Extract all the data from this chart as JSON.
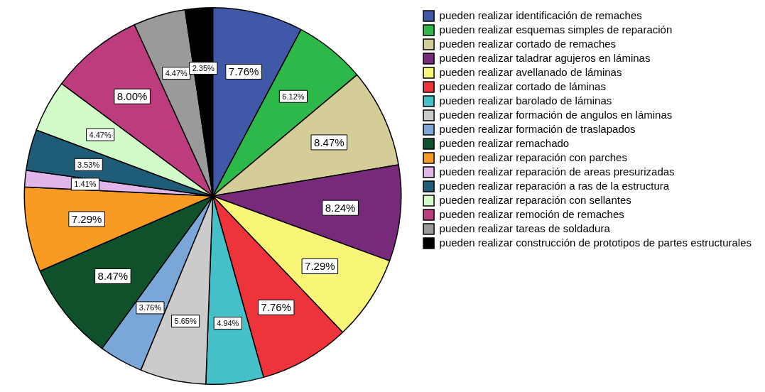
{
  "chart_data": {
    "type": "pie",
    "categories": [
      "pueden realizar identificación de remaches",
      "pueden realizar esquemas simples de reparación",
      "pueden realizar cortado de remaches",
      "pueden realizar taladrar agujeros en láminas",
      "pueden realizar avellanado de láminas",
      "pueden realizar cortado de láminas",
      "pueden realizar barolado de láminas",
      "pueden realizar formación de angulos en láminas",
      "pueden realizar formación de traslapados",
      "pueden realizar remachado",
      "pueden realizar reparación con parches",
      "pueden realizar reparación de areas presurizadas",
      "pueden realizar reparación a ras de la estructura",
      "pueden realizar reparación con sellantes",
      "pueden realizar remoción de remaches",
      "pueden realizar tareas de soldadura",
      "pueden realizar construcción de prototipos de partes estructurales"
    ],
    "values": [
      7.76,
      6.12,
      8.47,
      8.24,
      7.29,
      7.76,
      4.94,
      5.65,
      3.76,
      8.47,
      7.29,
      1.41,
      3.53,
      4.47,
      8.0,
      4.47,
      2.35
    ],
    "value_labels": [
      "7.76%",
      "6.12%",
      "8.47%",
      "8.24%",
      "7.29%",
      "7.76%",
      "4.94%",
      "5.65%",
      "3.76%",
      "8.47%",
      "7.29%",
      "1.41%",
      "3.53%",
      "4.47%",
      "8.00%",
      "4.47%",
      "2.35%"
    ],
    "colors": [
      "#3f58a8",
      "#2db84a",
      "#d4cd97",
      "#782a7a",
      "#f8f577",
      "#ef333a",
      "#46c0c8",
      "#cbcbcb",
      "#7ba7d8",
      "#0e512b",
      "#f99b22",
      "#e1b6ea",
      "#1e5c78",
      "#d3fbc9",
      "#bd3c7d",
      "#9a9a9a",
      "#000000"
    ],
    "legend": "top right"
  }
}
